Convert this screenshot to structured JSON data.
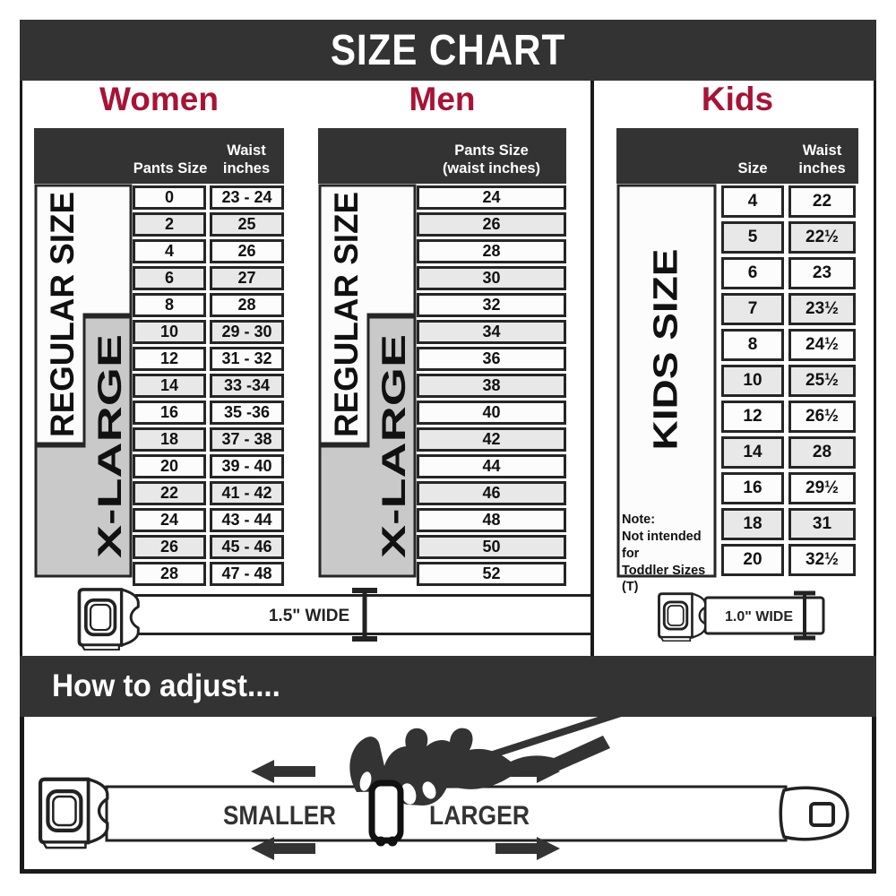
{
  "title": "SIZE CHART",
  "colors": {
    "band": "#333333",
    "accent": "#a81335",
    "row_alt": "#e8e8e8",
    "xl_gray": "#c9c9c9"
  },
  "women": {
    "heading": "Women",
    "col1": "Pants Size",
    "col2": "Waist\ninches",
    "regular_label": "REGULAR SIZE",
    "xlarge_label": "X-LARGE",
    "rows": [
      [
        "0",
        "23 - 24"
      ],
      [
        "2",
        "25"
      ],
      [
        "4",
        "26"
      ],
      [
        "6",
        "27"
      ],
      [
        "8",
        "28"
      ],
      [
        "10",
        "29 - 30"
      ],
      [
        "12",
        "31 - 32"
      ],
      [
        "14",
        "33 -34"
      ],
      [
        "16",
        "35 -36"
      ],
      [
        "18",
        "37 - 38"
      ],
      [
        "20",
        "39 - 40"
      ],
      [
        "22",
        "41 - 42"
      ],
      [
        "24",
        "43 - 44"
      ],
      [
        "26",
        "45 - 46"
      ],
      [
        "28",
        "47 - 48"
      ]
    ],
    "belt_width_label": "1.5\" WIDE"
  },
  "men": {
    "heading": "Men",
    "col1": "Pants Size\n(waist inches)",
    "regular_label": "REGULAR SIZE",
    "xlarge_label": "X-LARGE",
    "rows": [
      [
        "24"
      ],
      [
        "26"
      ],
      [
        "28"
      ],
      [
        "30"
      ],
      [
        "32"
      ],
      [
        "34"
      ],
      [
        "36"
      ],
      [
        "38"
      ],
      [
        "40"
      ],
      [
        "42"
      ],
      [
        "44"
      ],
      [
        "46"
      ],
      [
        "48"
      ],
      [
        "50"
      ],
      [
        "52"
      ]
    ]
  },
  "kids": {
    "heading": "Kids",
    "col1": "Size",
    "col2": "Waist\ninches",
    "size_label": "KIDS SIZE",
    "note": "Note:\nNot intended for\nToddler Sizes (T)",
    "rows": [
      [
        "4",
        "22"
      ],
      [
        "5",
        "22½"
      ],
      [
        "6",
        "23"
      ],
      [
        "7",
        "23½"
      ],
      [
        "8",
        "24½"
      ],
      [
        "10",
        "25½"
      ],
      [
        "12",
        "26½"
      ],
      [
        "14",
        "28"
      ],
      [
        "16",
        "29½"
      ],
      [
        "18",
        "31"
      ],
      [
        "20",
        "32½"
      ]
    ],
    "belt_width_label": "1.0\" WIDE"
  },
  "adjust": {
    "heading": "How to adjust....",
    "smaller": "SMALLER",
    "larger": "LARGER"
  }
}
